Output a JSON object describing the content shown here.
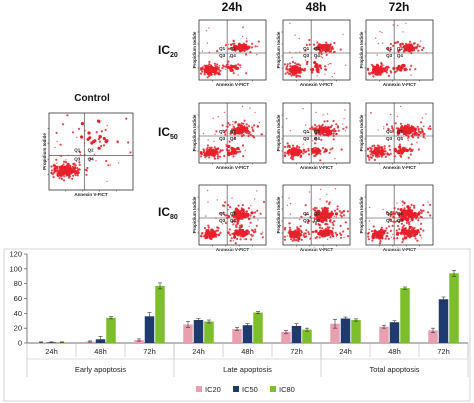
{
  "flow": {
    "column_headers": [
      "24h",
      "48h",
      "72h"
    ],
    "rows": [
      {
        "prefix": "IC",
        "sub": "20"
      },
      {
        "prefix": "IC",
        "sub": "50"
      },
      {
        "prefix": "IC",
        "sub": "80"
      }
    ],
    "control_label": "Control",
    "x_axis_label": "Annexin V-FICT",
    "y_axis_label": "Propidium Iodide",
    "quadrants": [
      "Q1",
      "Q2",
      "Q3",
      "Q4"
    ],
    "dot_color": "#e8202a"
  },
  "chart_data": {
    "type": "bar",
    "ylim": [
      0,
      120
    ],
    "yticks": [
      0,
      20,
      40,
      60,
      80,
      100,
      120
    ],
    "groups": [
      {
        "name": "Early apoptosis",
        "categories": [
          "24h",
          "48h",
          "72h"
        ]
      },
      {
        "name": "Late apoptosis",
        "categories": [
          "24h",
          "48h",
          "72h"
        ]
      },
      {
        "name": "Total apoptosis",
        "categories": [
          "24h",
          "48h",
          "72h"
        ]
      }
    ],
    "series": [
      {
        "name": "IC20",
        "color": "#e8a0b0",
        "values": [
          1,
          2,
          4,
          25,
          19,
          15,
          26,
          22,
          17
        ],
        "errors": [
          0.5,
          0.8,
          1.5,
          4,
          2,
          2,
          6,
          2,
          3
        ]
      },
      {
        "name": "IC50",
        "color": "#1f3a6e",
        "values": [
          1,
          5,
          36,
          31,
          24,
          23,
          33,
          28,
          59
        ],
        "errors": [
          0.5,
          4,
          5,
          2,
          2,
          3,
          2,
          2,
          3
        ]
      },
      {
        "name": "IC80",
        "color": "#7cbf2a",
        "values": [
          1,
          34,
          77,
          29,
          41,
          18,
          31,
          74,
          94
        ],
        "errors": [
          0.5,
          1.5,
          4,
          2,
          1.5,
          2,
          1.5,
          1.5,
          4
        ]
      }
    ]
  }
}
